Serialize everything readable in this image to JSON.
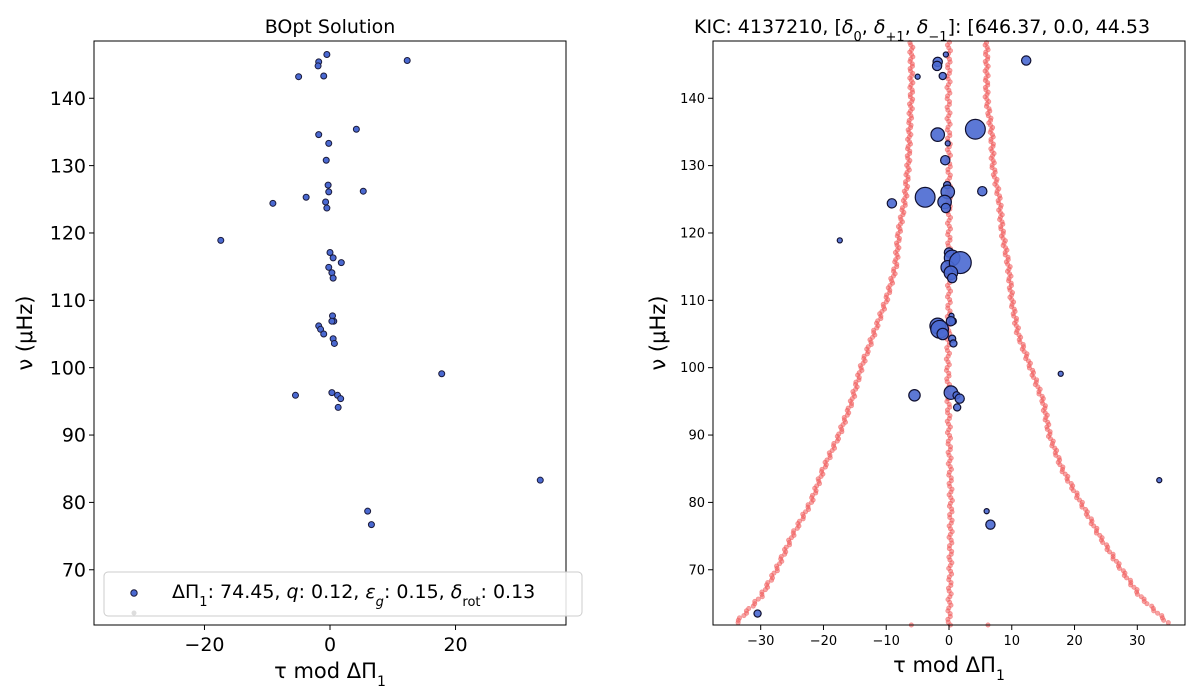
{
  "chart_data": [
    {
      "type": "scatter",
      "title": "BOpt Solution",
      "xlabel": "τ mod ΔΠ₁",
      "ylabel": "ν (μHz)",
      "xlim": [
        -37.6,
        37.6
      ],
      "ylim": [
        61.8,
        148.5
      ],
      "xticks": [
        -20,
        0,
        20
      ],
      "yticks": [
        70,
        80,
        90,
        100,
        110,
        120,
        130,
        140
      ],
      "legend": {
        "placement": "lower-right",
        "label_prefix": "ΔΠ",
        "label_sub": "1",
        "label_value": ": 74.45, ",
        "q_label": "q",
        "q_value": ": 0.12, ",
        "eps_label": "ε",
        "eps_sub": "g",
        "eps_value": ": 0.15, ",
        "drot_label": "δ",
        "drot_sub": "rot",
        "drot_value": ": 0.13"
      },
      "series": [
        {
          "name": "modes",
          "color": "#4a69d1",
          "x": [
            -0.5,
            -1.8,
            -1.9,
            -5.0,
            -1.0,
            12.3,
            4.2,
            -1.8,
            -0.2,
            -0.6,
            -0.3,
            -0.2,
            5.3,
            -3.8,
            -9.1,
            -0.7,
            -0.5,
            -17.4,
            0.0,
            0.5,
            -0.2,
            1.8,
            0.3,
            0.5,
            0.4,
            0.6,
            0.3,
            -1.8,
            -1.5,
            -1.0,
            0.5,
            0.7,
            17.8,
            0.3,
            -5.5,
            1.2,
            1.7,
            1.3,
            33.5,
            6.0,
            6.6
          ],
          "y": [
            146.5,
            145.4,
            144.8,
            143.2,
            143.3,
            145.6,
            135.4,
            134.6,
            133.3,
            130.8,
            127.1,
            126.1,
            126.2,
            125.3,
            124.4,
            124.6,
            123.7,
            118.9,
            117.1,
            116.3,
            114.9,
            115.6,
            114.1,
            113.3,
            107.7,
            106.9,
            106.9,
            106.2,
            105.7,
            105.0,
            104.3,
            103.6,
            99.1,
            96.3,
            95.9,
            95.9,
            95.4,
            94.1,
            83.3,
            78.7,
            76.7
          ]
        }
      ]
    },
    {
      "type": "scatter",
      "title_prefix": "KIC: 4137210, [",
      "title_d0": "δ",
      "title_d0_sub": "0",
      "title_sep1": ", ",
      "title_dp1": "δ",
      "title_dp1_sub": "+1",
      "title_sep2": ", ",
      "title_dm1": "δ",
      "title_dm1_sub": "−1",
      "title_suffix": "]: [646.37, 0.0, 44.53",
      "xlabel": "τ mod ΔΠ₁",
      "ylabel": "ν (μHz)",
      "xlim": [
        -37.6,
        37.6
      ],
      "ylim": [
        61.8,
        148.5
      ],
      "xticks": [
        -30,
        -20,
        -10,
        0,
        10,
        20,
        30
      ],
      "yticks": [
        70,
        80,
        90,
        100,
        110,
        120,
        130,
        140
      ],
      "modes_color": "#4a69d1",
      "model_color": "#f05a5a",
      "modes": {
        "x": [
          -0.5,
          -1.8,
          -1.9,
          -5.0,
          -1.0,
          12.3,
          4.2,
          -1.8,
          -0.2,
          -0.6,
          -0.3,
          -0.2,
          5.3,
          -3.8,
          -9.1,
          -0.7,
          -0.5,
          -17.4,
          0.0,
          0.5,
          -0.2,
          1.8,
          0.3,
          0.5,
          0.4,
          0.6,
          0.3,
          -1.8,
          -1.5,
          -1.0,
          0.5,
          0.7,
          17.8,
          0.3,
          -5.5,
          1.2,
          1.7,
          1.3,
          33.5,
          6.0,
          6.6,
          -30.5
        ],
        "y": [
          146.5,
          145.4,
          144.8,
          143.2,
          143.3,
          145.6,
          135.4,
          134.6,
          133.3,
          130.8,
          127.1,
          126.1,
          126.2,
          125.3,
          124.4,
          124.6,
          123.7,
          118.9,
          117.1,
          116.3,
          114.9,
          115.6,
          114.1,
          113.3,
          107.7,
          106.9,
          106.9,
          106.2,
          105.7,
          105.0,
          104.3,
          103.6,
          99.1,
          96.3,
          95.9,
          95.9,
          95.4,
          94.1,
          83.3,
          78.7,
          76.7,
          63.5
        ],
        "size": [
          1,
          3,
          3,
          1,
          2,
          3,
          8,
          5,
          1,
          3,
          2,
          5,
          3,
          8,
          3,
          5,
          3,
          1,
          3,
          6,
          5,
          9,
          5,
          3,
          1,
          2,
          3,
          6,
          7,
          4,
          2,
          2,
          1,
          5,
          4,
          2,
          3,
          2,
          1,
          1,
          3,
          2
        ]
      },
      "model_tracks": [
        {
          "name": "left",
          "nu": [
            62,
            66,
            70,
            75,
            80,
            85,
            90,
            95,
            100,
            105,
            110,
            115,
            120,
            125,
            130,
            135,
            140,
            145,
            148.5
          ],
          "x": [
            -34.0,
            -30.0,
            -27.5,
            -25.0,
            -22.0,
            -20.0,
            -17.5,
            -15.5,
            -14.0,
            -12.0,
            -10.0,
            -8.5,
            -8.0,
            -7.0,
            -6.5,
            -6.3,
            -6.0,
            -6.0,
            -6.0
          ]
        },
        {
          "name": "right",
          "nu": [
            62,
            66,
            70,
            75,
            80,
            85,
            90,
            95,
            100,
            105,
            110,
            115,
            120,
            125,
            130,
            135,
            140,
            145,
            148.5
          ],
          "x": [
            35.0,
            30.5,
            27.5,
            24.0,
            21.0,
            18.0,
            16.0,
            15.0,
            13.0,
            11.0,
            10.0,
            9.5,
            8.5,
            8.0,
            7.0,
            6.8,
            6.0,
            6.0,
            6.0
          ]
        },
        {
          "name": "center",
          "nu": [
            62,
            70,
            80,
            90,
            100,
            110,
            120,
            130,
            140,
            148.5
          ],
          "x": [
            0.0,
            0.2,
            0.3,
            0.0,
            -0.2,
            0.0,
            0.0,
            0.0,
            -0.1,
            0.0
          ]
        }
      ]
    }
  ]
}
